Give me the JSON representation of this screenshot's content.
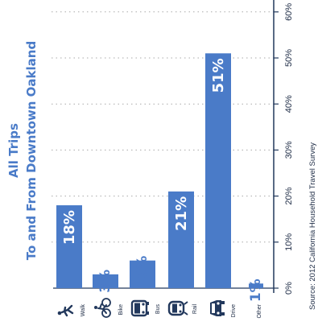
{
  "chart_data": {
    "type": "bar",
    "title_line1": "All Trips",
    "title_line2": "To and From Downtown Oakland",
    "source": "Source: 2012 California Household Travel Survey",
    "categories": [
      "Walk",
      "Bike",
      "Bus",
      "Rail",
      "Drive",
      "Other"
    ],
    "values": [
      18,
      3,
      6,
      21,
      51,
      1
    ],
    "value_labels": [
      "18%",
      "3%",
      "6%",
      "21%",
      "51%",
      "1%"
    ],
    "icons": [
      "walk-icon",
      "bike-icon",
      "bus-icon",
      "rail-icon",
      "car-icon",
      ""
    ],
    "ticks": [
      0,
      10,
      20,
      30,
      40,
      50,
      60
    ],
    "tick_labels": [
      "0%",
      "10%",
      "20%",
      "30%",
      "40%",
      "50%",
      "60%"
    ],
    "ylim": [
      0,
      60
    ],
    "grid": true,
    "orientation": "rotated-90-ccw",
    "colors": {
      "bar": "#4a7bc8",
      "axis": "#22385c",
      "grid": "#a9a9a9",
      "title": "#4a7bc8",
      "text": "#1d2b45"
    }
  }
}
